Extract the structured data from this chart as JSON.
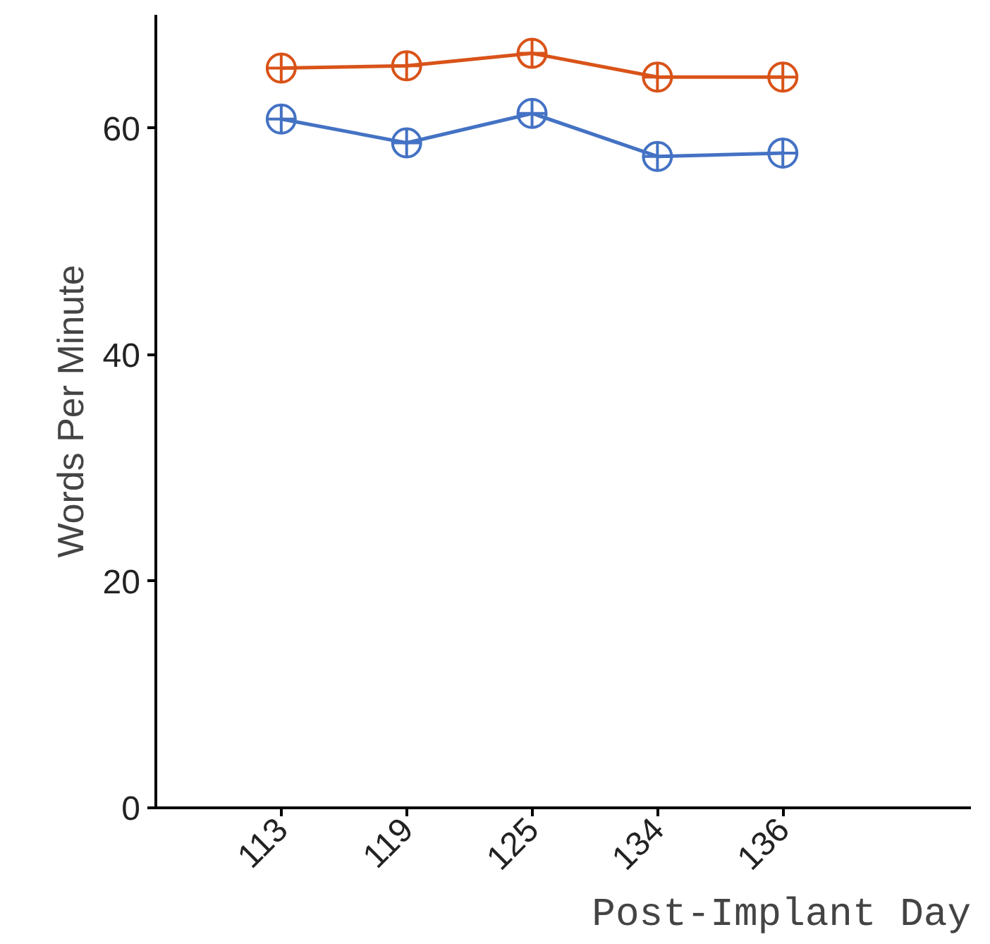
{
  "chart_data": {
    "type": "line",
    "xlabel": "Post-Implant Day",
    "ylabel": "Words Per Minute",
    "categories": [
      "113",
      "119",
      "125",
      "134",
      "136"
    ],
    "series": [
      {
        "color": "#d95319",
        "values": [
          65.3,
          65.5,
          66.6,
          64.5,
          64.5
        ]
      },
      {
        "color": "#4472c4",
        "values": [
          60.8,
          58.7,
          61.3,
          57.5,
          57.8
        ]
      }
    ],
    "ylim": [
      0,
      70
    ],
    "yticks": [
      0,
      20,
      40,
      60
    ],
    "grid": false,
    "marker": "circle",
    "line_style": "solid"
  }
}
